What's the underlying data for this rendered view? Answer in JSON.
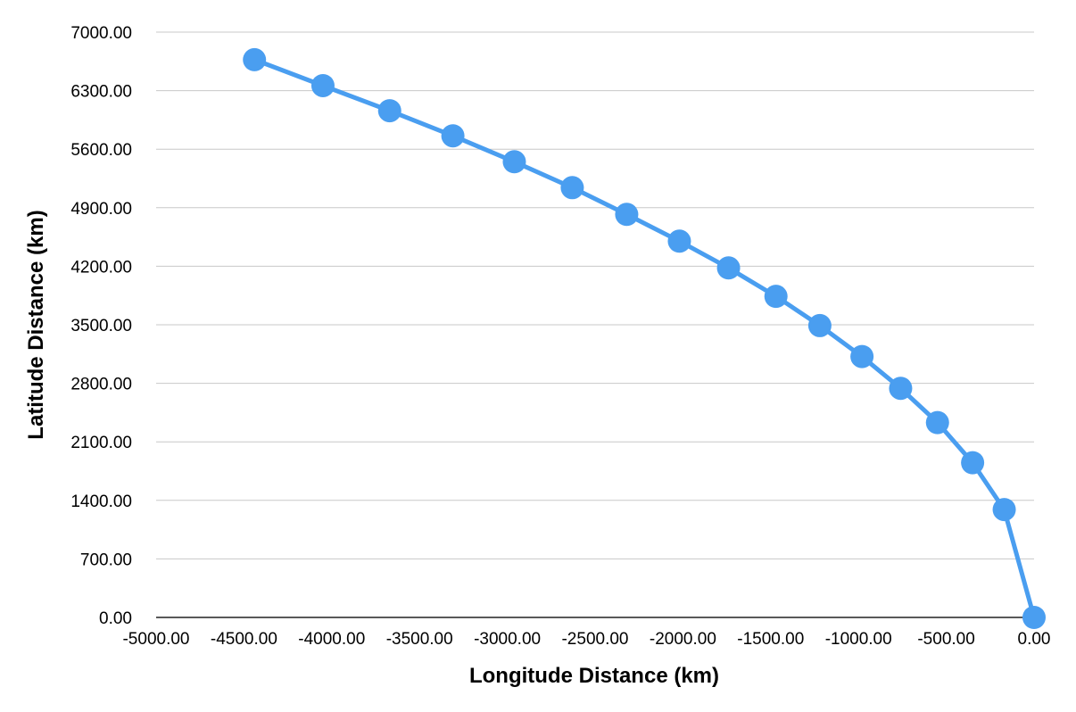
{
  "chart_data": {
    "type": "line",
    "title": "",
    "xlabel": "Longitude Distance (km)",
    "ylabel": "Latitude Distance (km)",
    "xlim": [
      -5000,
      0
    ],
    "ylim": [
      0,
      7000
    ],
    "x_ticks": [
      -5000,
      -4500,
      -4000,
      -3500,
      -3000,
      -2500,
      -2000,
      -1500,
      -1000,
      -500,
      0
    ],
    "y_ticks": [
      0,
      700,
      1400,
      2100,
      2800,
      3500,
      4200,
      4900,
      5600,
      6300,
      7000
    ],
    "x_tick_labels": [
      "-5000.00",
      "-4500.00",
      "-4000.00",
      "-3500.00",
      "-3000.00",
      "-2500.00",
      "-2000.00",
      "-1500.00",
      "-1000.00",
      "-500.00",
      "0.00"
    ],
    "y_tick_labels": [
      "0.00",
      "700.00",
      "1400.00",
      "2100.00",
      "2800.00",
      "3500.00",
      "4200.00",
      "4900.00",
      "5600.00",
      "6300.00",
      "7000.00"
    ],
    "grid": true,
    "legend": "none",
    "series": [
      {
        "color": "#4a9ef0",
        "points": [
          {
            "x": -4440,
            "y": 6670
          },
          {
            "x": -4050,
            "y": 6360
          },
          {
            "x": -3670,
            "y": 6060
          },
          {
            "x": -3310,
            "y": 5760
          },
          {
            "x": -2960,
            "y": 5450
          },
          {
            "x": -2630,
            "y": 5140
          },
          {
            "x": -2320,
            "y": 4820
          },
          {
            "x": -2020,
            "y": 4500
          },
          {
            "x": -1740,
            "y": 4180
          },
          {
            "x": -1470,
            "y": 3840
          },
          {
            "x": -1220,
            "y": 3490
          },
          {
            "x": -980,
            "y": 3120
          },
          {
            "x": -760,
            "y": 2740
          },
          {
            "x": -550,
            "y": 2330
          },
          {
            "x": -350,
            "y": 1850
          },
          {
            "x": -170,
            "y": 1290
          },
          {
            "x": 0,
            "y": 0
          }
        ]
      }
    ]
  }
}
